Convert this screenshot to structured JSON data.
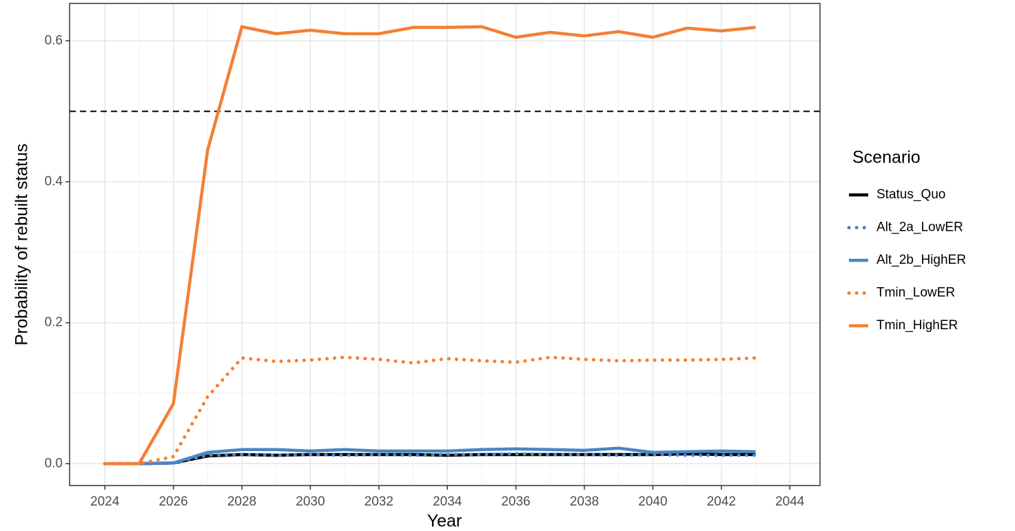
{
  "chart_data": {
    "type": "line",
    "x_label": "Year",
    "y_label": "Probability of rebuilt status",
    "legend_title": "Scenario",
    "legend": "right",
    "x": [
      2024,
      2025,
      2026,
      2027,
      2028,
      2029,
      2030,
      2031,
      2032,
      2033,
      2034,
      2035,
      2036,
      2037,
      2038,
      2039,
      2040,
      2041,
      2042,
      2043
    ],
    "series": [
      {
        "name": "Status_Quo",
        "color": "#000000",
        "linetype": "solid",
        "values": [
          0,
          0,
          0.001,
          0.011,
          0.013,
          0.012,
          0.013,
          0.013,
          0.013,
          0.013,
          0.012,
          0.013,
          0.013,
          0.013,
          0.013,
          0.013,
          0.013,
          0.014,
          0.013,
          0.013
        ]
      },
      {
        "name": "Alt_2a_LowER",
        "color": "#4a86c5",
        "linetype": "dotted",
        "values": [
          0,
          0,
          0.001,
          0.012,
          0.013,
          0.012,
          0.013,
          0.012,
          0.013,
          0.012,
          0.013,
          0.013,
          0.014,
          0.013,
          0.013,
          0.012,
          0.013,
          0.012,
          0.012,
          0.012
        ]
      },
      {
        "name": "Alt_2b_HighER",
        "color": "#4a86c5",
        "linetype": "solid",
        "values": [
          0,
          0,
          0.001,
          0.016,
          0.02,
          0.02,
          0.018,
          0.02,
          0.018,
          0.018,
          0.018,
          0.02,
          0.021,
          0.02,
          0.019,
          0.022,
          0.016,
          0.017,
          0.018,
          0.017
        ]
      },
      {
        "name": "Tmin_LowER",
        "color": "#f37f33",
        "linetype": "dotted",
        "values": [
          0,
          0,
          0.01,
          0.095,
          0.15,
          0.145,
          0.147,
          0.151,
          0.148,
          0.143,
          0.149,
          0.146,
          0.144,
          0.151,
          0.148,
          0.146,
          0.147,
          0.147,
          0.148,
          0.15
        ]
      },
      {
        "name": "Tmin_HighER",
        "color": "#f37f33",
        "linetype": "solid",
        "values": [
          0,
          0,
          0.085,
          0.445,
          0.62,
          0.61,
          0.615,
          0.61,
          0.61,
          0.619,
          0.619,
          0.62,
          0.605,
          0.612,
          0.607,
          0.613,
          0.605,
          0.618,
          0.614,
          0.619
        ]
      }
    ],
    "reference_line": 0.5,
    "xlim": [
      2022.97,
      2044.88
    ],
    "ylim": [
      -0.031,
      0.653
    ],
    "xticks": [
      2024,
      2026,
      2028,
      2030,
      2032,
      2034,
      2036,
      2038,
      2040,
      2042,
      2044
    ],
    "yticks": [
      {
        "value": 0,
        "label": "0.0"
      },
      0.2,
      0.4,
      0.6
    ],
    "grid": true,
    "minor_grid": true
  }
}
